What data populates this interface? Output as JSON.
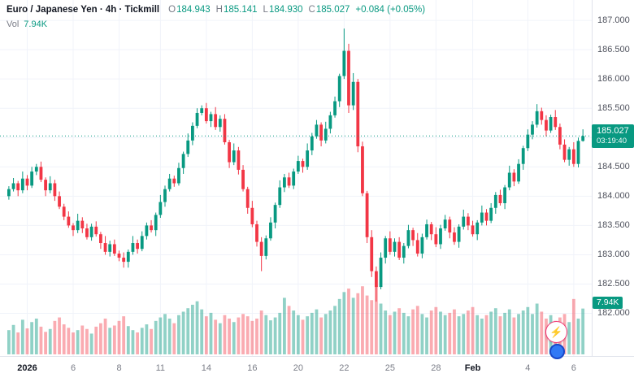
{
  "header": {
    "symbol_title": "Euro / Japanese Yen · 4h · Tickmill",
    "ohlc": {
      "o_label": "O",
      "o": "184.943",
      "h_label": "H",
      "h": "185.141",
      "l_label": "L",
      "l": "184.930",
      "c_label": "C",
      "c": "185.027",
      "change": "+0.084 (+0.05%)"
    },
    "volume_row": {
      "label": "Vol",
      "value": "7.94K"
    }
  },
  "price_scale": {
    "ticks": [
      "187.000",
      "186.500",
      "186.000",
      "185.500",
      "185.000",
      "184.500",
      "184.000",
      "183.500",
      "183.000",
      "182.500",
      "182.000"
    ],
    "price_label": {
      "price": "185.027",
      "countdown": "03:19:40"
    },
    "volume_label": "7.94K"
  },
  "time_scale": {
    "ticks": [
      {
        "label": "2026",
        "index": 4,
        "major": true
      },
      {
        "label": "6",
        "index": 14,
        "major": false
      },
      {
        "label": "8",
        "index": 24,
        "major": false
      },
      {
        "label": "11",
        "index": 33,
        "major": false
      },
      {
        "label": "14",
        "index": 43,
        "major": false
      },
      {
        "label": "16",
        "index": 53,
        "major": false
      },
      {
        "label": "20",
        "index": 63,
        "major": false
      },
      {
        "label": "22",
        "index": 73,
        "major": false
      },
      {
        "label": "25",
        "index": 83,
        "major": false
      },
      {
        "label": "28",
        "index": 93,
        "major": false
      },
      {
        "label": "Feb",
        "index": 101,
        "major": true
      },
      {
        "label": "4",
        "index": 113,
        "major": false
      },
      {
        "label": "6",
        "index": 123,
        "major": false
      }
    ]
  },
  "colors": {
    "up": "#089981",
    "down": "#f23645",
    "vol_up": "rgba(8,153,129,0.45)",
    "vol_down": "rgba(242,54,69,0.42)",
    "grid": "#f0f3fa",
    "axis_border": "#e0e3eb",
    "badge_bg": "#089981"
  },
  "widgets": {
    "boost_icon": "⚡"
  },
  "chart_data": {
    "type": "candlestick",
    "title": "Euro / Japanese Yen",
    "timeframe": "4h",
    "broker": "Tickmill",
    "last_close": 185.027,
    "price_axis_range": [
      181.3,
      187.32
    ],
    "volume_unit": "K",
    "open": [
      184.0,
      184.12,
      184.22,
      184.1,
      184.3,
      184.18,
      184.42,
      184.5,
      184.28,
      184.1,
      184.22,
      184.0,
      183.82,
      183.65,
      183.5,
      183.42,
      183.58,
      183.45,
      183.3,
      183.48,
      183.35,
      183.2,
      183.05,
      183.18,
      183.02,
      182.95,
      182.88,
      183.05,
      183.2,
      183.1,
      183.32,
      183.5,
      183.42,
      183.68,
      183.9,
      184.12,
      184.3,
      184.22,
      184.48,
      184.72,
      184.95,
      185.2,
      185.42,
      185.5,
      185.28,
      185.4,
      185.18,
      185.32,
      184.92,
      184.58,
      184.78,
      184.45,
      184.12,
      183.8,
      183.52,
      183.22,
      182.98,
      183.28,
      183.55,
      183.85,
      184.15,
      184.32,
      184.18,
      184.42,
      184.6,
      184.5,
      184.78,
      185.02,
      185.22,
      184.95,
      185.15,
      185.38,
      185.62,
      186.05,
      186.48,
      185.55,
      185.95,
      184.85,
      184.05,
      183.3,
      182.72,
      182.45,
      182.95,
      183.28,
      183.05,
      183.22,
      182.95,
      183.15,
      183.42,
      183.25,
      183.02,
      183.3,
      183.52,
      183.35,
      183.18,
      183.45,
      183.6,
      183.38,
      183.22,
      183.48,
      183.65,
      183.5,
      183.35,
      183.55,
      183.72,
      183.58,
      183.8,
      184.02,
      183.88,
      184.15,
      184.4,
      184.25,
      184.55,
      184.82,
      185.05,
      185.22,
      185.45,
      185.3,
      185.12,
      185.35,
      185.18,
      184.88,
      184.62,
      184.8,
      184.55,
      184.943
    ],
    "high": [
      184.17,
      184.31,
      184.26,
      184.42,
      184.36,
      184.5,
      184.55,
      184.59,
      184.32,
      184.34,
      184.28,
      184.08,
      183.87,
      183.74,
      183.54,
      183.7,
      183.64,
      183.53,
      183.53,
      183.57,
      183.39,
      183.32,
      183.24,
      183.26,
      183.07,
      183.04,
      183.09,
      183.32,
      183.26,
      183.4,
      183.55,
      183.59,
      183.72,
      184.02,
      184.18,
      184.38,
      184.35,
      184.57,
      184.76,
      185.07,
      185.26,
      185.5,
      185.55,
      185.59,
      185.44,
      185.52,
      185.38,
      185.4,
      184.96,
      184.9,
      184.84,
      184.53,
      184.16,
      183.92,
      183.58,
      183.3,
      183.33,
      183.64,
      183.89,
      184.27,
      184.38,
      184.4,
      184.47,
      184.69,
      184.64,
      184.9,
      185.08,
      185.3,
      185.26,
      185.27,
      185.44,
      185.7,
      186.09,
      186.86,
      186.6,
      186.1,
      186.0,
      184.93,
      184.09,
      183.42,
      182.8,
      183.04,
      183.32,
      183.4,
      183.28,
      183.3,
      183.2,
      183.51,
      183.46,
      183.37,
      183.36,
      183.6,
      183.56,
      183.47,
      183.51,
      183.68,
      183.65,
      183.47,
      183.52,
      183.77,
      183.71,
      183.58,
      183.59,
      183.84,
      183.78,
      183.88,
      184.07,
      184.11,
      184.19,
      184.52,
      184.46,
      184.63,
      184.86,
      185.14,
      185.28,
      185.57,
      185.51,
      185.38,
      185.39,
      185.47,
      185.24,
      184.97,
      184.84,
      184.92,
      185.0,
      185.141
    ],
    "low": [
      183.94,
      184.08,
      184.0,
      184.05,
      184.1,
      184.14,
      184.36,
      184.24,
      184.0,
      184.05,
      183.92,
      183.78,
      183.59,
      183.46,
      183.32,
      183.37,
      183.37,
      183.26,
      183.24,
      183.31,
      183.1,
      183.0,
      182.97,
      182.98,
      182.89,
      182.78,
      182.78,
      183.0,
      183.02,
      183.06,
      183.26,
      183.38,
      183.32,
      183.63,
      183.82,
      184.08,
      184.16,
      184.18,
      184.38,
      184.67,
      184.87,
      185.16,
      185.38,
      185.24,
      185.18,
      185.13,
      185.1,
      184.88,
      184.48,
      184.53,
      184.37,
      184.08,
      183.7,
      183.47,
      183.14,
      182.72,
      182.92,
      183.24,
      183.45,
      183.8,
      184.07,
      184.14,
      184.12,
      184.38,
      184.4,
      184.45,
      184.7,
      184.98,
      184.85,
      184.9,
      185.07,
      185.34,
      185.52,
      186.0,
      185.42,
      185.47,
      184.75,
      184.0,
      183.2,
      182.62,
      182.2,
      182.41,
      182.85,
      183.0,
      182.97,
      182.91,
      182.85,
      183.11,
      183.15,
      182.97,
      182.94,
      183.26,
      183.25,
      183.13,
      183.1,
      183.41,
      183.28,
      183.17,
      183.12,
      183.43,
      183.42,
      183.31,
      183.25,
      183.5,
      183.5,
      183.54,
      183.7,
      183.84,
      183.78,
      184.1,
      184.17,
      184.21,
      184.45,
      184.77,
      184.97,
      185.17,
      185.22,
      185.02,
      185.08,
      185.13,
      184.8,
      184.58,
      184.52,
      184.5,
      184.49,
      184.93
    ],
    "close": [
      184.12,
      184.22,
      184.1,
      184.3,
      184.18,
      184.42,
      184.5,
      184.28,
      184.1,
      184.22,
      184.0,
      183.82,
      183.65,
      183.5,
      183.42,
      183.58,
      183.45,
      183.3,
      183.48,
      183.35,
      183.2,
      183.05,
      183.18,
      183.02,
      182.95,
      182.88,
      183.05,
      183.2,
      183.1,
      183.32,
      183.5,
      183.42,
      183.68,
      183.9,
      184.12,
      184.3,
      184.22,
      184.48,
      184.72,
      184.95,
      185.2,
      185.42,
      185.5,
      185.28,
      185.4,
      185.18,
      185.32,
      184.92,
      184.58,
      184.78,
      184.45,
      184.12,
      183.8,
      183.52,
      183.22,
      182.98,
      183.28,
      183.55,
      183.85,
      184.15,
      184.32,
      184.18,
      184.42,
      184.6,
      184.5,
      184.78,
      185.02,
      185.22,
      184.95,
      185.15,
      185.38,
      185.62,
      186.05,
      186.48,
      185.55,
      185.95,
      184.85,
      184.05,
      183.3,
      182.72,
      182.45,
      182.95,
      183.28,
      183.05,
      183.22,
      182.95,
      183.15,
      183.42,
      183.25,
      183.02,
      183.3,
      183.52,
      183.35,
      183.18,
      183.45,
      183.6,
      183.38,
      183.22,
      183.48,
      183.65,
      183.5,
      183.35,
      183.55,
      183.72,
      183.58,
      183.8,
      184.02,
      183.88,
      184.15,
      184.4,
      184.25,
      184.55,
      184.82,
      185.05,
      185.22,
      185.45,
      185.3,
      185.12,
      185.35,
      185.18,
      184.88,
      184.62,
      184.8,
      184.55,
      184.943,
      185.027
    ],
    "volume_k": [
      4.2,
      5.1,
      3.8,
      6.0,
      4.5,
      5.6,
      6.2,
      4.8,
      3.9,
      4.4,
      5.8,
      6.4,
      5.2,
      4.6,
      3.8,
      4.2,
      5.0,
      4.4,
      3.6,
      4.8,
      5.4,
      6.2,
      4.6,
      5.0,
      5.8,
      6.6,
      4.9,
      4.2,
      3.8,
      4.6,
      5.2,
      4.4,
      5.8,
      6.4,
      7.0,
      6.2,
      5.4,
      6.8,
      7.4,
      8.0,
      8.6,
      9.2,
      7.8,
      6.6,
      7.2,
      6.0,
      5.4,
      6.8,
      6.2,
      5.6,
      6.4,
      7.0,
      6.6,
      5.8,
      6.2,
      7.6,
      6.8,
      5.9,
      6.4,
      7.2,
      9.8,
      8.4,
      7.6,
      6.8,
      6.0,
      6.6,
      7.2,
      7.8,
      6.4,
      7.0,
      7.6,
      8.4,
      9.6,
      10.8,
      11.4,
      9.8,
      10.6,
      11.8,
      10.2,
      9.4,
      12.0,
      8.8,
      7.6,
      6.8,
      7.4,
      8.0,
      7.2,
      6.6,
      7.8,
      8.4,
      7.0,
      6.4,
      7.6,
      8.2,
      7.4,
      6.8,
      7.2,
      7.8,
      6.6,
      7.0,
      7.6,
      8.2,
      6.8,
      6.2,
      6.8,
      7.4,
      8.0,
      6.6,
      7.2,
      7.8,
      6.4,
      7.0,
      7.6,
      8.2,
      7.0,
      8.8,
      7.4,
      6.2,
      6.8,
      5.8,
      6.4,
      7.0,
      5.6,
      9.6,
      6.2,
      7.94
    ]
  }
}
